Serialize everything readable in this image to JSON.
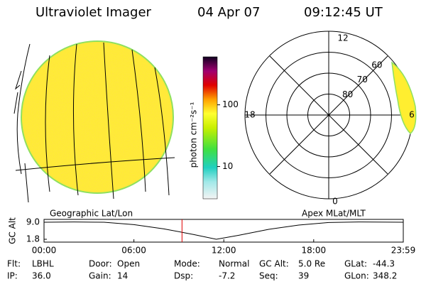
{
  "header": {
    "title": "Ultraviolet Imager",
    "date": "04 Apr 07",
    "time": "09:12:45 UT"
  },
  "colorbar": {
    "label": "photon cm⁻²s⁻¹",
    "log": true,
    "lim": [
      3,
      600
    ],
    "ticks": [
      10,
      100
    ]
  },
  "polar": {
    "rlim": [
      90,
      50
    ],
    "rings": [
      60,
      70,
      80
    ],
    "mlt_labels": {
      "top": "12",
      "left": "18",
      "right": "6",
      "bottom": "0"
    }
  },
  "captions": {
    "left": "Geographic Lat/Lon",
    "right": "Apex MLat/MLT"
  },
  "altitude_plot": {
    "ylabel": "GC Alt",
    "xlim": [
      0,
      23.98
    ],
    "ylim": [
      1.8,
      9.0
    ],
    "xticks": [
      {
        "value": 0,
        "label": "00:00"
      },
      {
        "value": 6,
        "label": "06:00"
      },
      {
        "value": 12,
        "label": "12:00"
      },
      {
        "value": 18,
        "label": "18:00"
      },
      {
        "value": 23.98,
        "label": "23:59"
      }
    ],
    "yticks": [
      {
        "value": 9.0,
        "label": "9.0"
      },
      {
        "value": 1.8,
        "label": "1.8"
      }
    ],
    "x": [
      0,
      2,
      4,
      6,
      8,
      10,
      11.5,
      13,
      15,
      17,
      19,
      21,
      23.98
    ],
    "y": [
      9.0,
      9.1,
      9.0,
      8.0,
      6.2,
      3.8,
      1.8,
      3.5,
      6.0,
      7.8,
      8.9,
      9.1,
      9.0
    ],
    "marker": 9.21,
    "marker_color": "#e00000"
  },
  "info": [
    [
      [
        "Flt:",
        "LBHL"
      ],
      [
        "Door:",
        "Open"
      ],
      [
        "Mode:",
        "Normal"
      ],
      [
        "GC Alt:",
        "5.0 Re"
      ],
      [
        "GLat:",
        "-44.3"
      ]
    ],
    [
      [
        "IP:",
        "36.0"
      ],
      [
        "Gain:",
        "14"
      ],
      [
        "Dsp:",
        "-7.2"
      ],
      [
        "Seq:",
        "39"
      ],
      [
        "GLon:",
        "348.2"
      ]
    ]
  ]
}
